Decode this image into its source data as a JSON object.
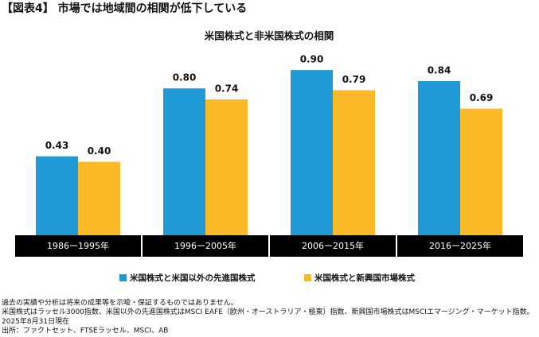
{
  "chart_data": {
    "type": "bar",
    "title": "【図表4】 市場では地域間の相関が低下している",
    "subtitle": "米国株式と非米国株式の相関",
    "categories": [
      "1986ー1995年",
      "1996ー2005年",
      "2006ー2015年",
      "2016ー2025年"
    ],
    "series": [
      {
        "name": "米国株式と米国以外の先進国株式",
        "color": "#1f9ad6",
        "values": [
          0.43,
          0.8,
          0.9,
          0.84
        ],
        "value_labels": [
          "0.43",
          "0.80",
          "0.90",
          "0.84"
        ]
      },
      {
        "name": "米国株式と新興国市場株式",
        "color": "#fbb928",
        "values": [
          0.4,
          0.74,
          0.79,
          0.69
        ],
        "value_labels": [
          "0.40",
          "0.74",
          "0.79",
          "0.69"
        ]
      }
    ],
    "notes": [
      "過去の実績や分析は将来の成果等を示唆・保証するものではありません。",
      "米国株式はラッセル3000指数、米国以外の先進国株式はMSCI EAFE（欧州・オーストラリア・極東）指数、新興国市場株式はMSCIエマージング・マーケット指数。",
      "2025年8月31日現在",
      "出所：ファクトセット、FTSEラッセル、MSCI、AB"
    ]
  }
}
